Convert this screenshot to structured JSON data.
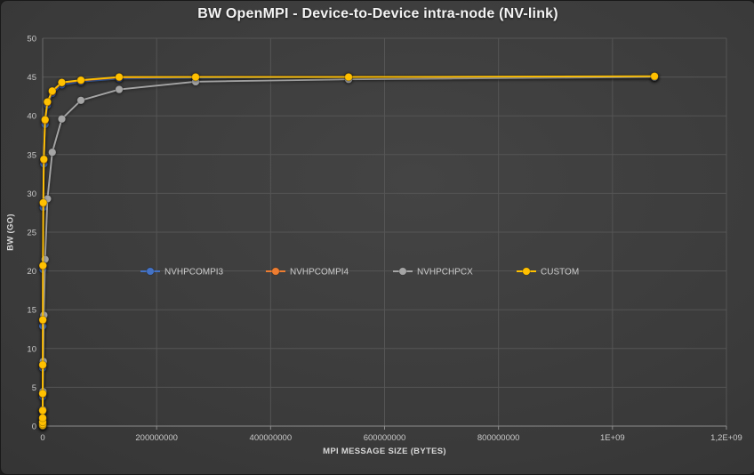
{
  "chart_data": {
    "type": "line",
    "title": "BW OpenMPI - Device-to-Device intra-node (NV-link)",
    "xlabel": "MPI MESSAGE SIZE (BYTES)",
    "ylabel": "BW (GO)",
    "xlim": [
      0,
      1200000000
    ],
    "ylim": [
      0,
      50
    ],
    "grid": true,
    "legend_position": "inside-plot-center-row",
    "x_ticks": [
      {
        "value": 0,
        "label": "0"
      },
      {
        "value": 200000000,
        "label": "200000000"
      },
      {
        "value": 400000000,
        "label": "400000000"
      },
      {
        "value": 600000000,
        "label": "600000000"
      },
      {
        "value": 800000000,
        "label": "800000000"
      },
      {
        "value": 1000000000,
        "label": "1E+09"
      },
      {
        "value": 1200000000,
        "label": "1,2E+09"
      }
    ],
    "y_ticks": [
      {
        "value": 0,
        "label": "0"
      },
      {
        "value": 5,
        "label": "5"
      },
      {
        "value": 10,
        "label": "10"
      },
      {
        "value": 15,
        "label": "15"
      },
      {
        "value": 20,
        "label": "20"
      },
      {
        "value": 25,
        "label": "25"
      },
      {
        "value": 30,
        "label": "30"
      },
      {
        "value": 35,
        "label": "35"
      },
      {
        "value": 40,
        "label": "40"
      },
      {
        "value": 45,
        "label": "45"
      },
      {
        "value": 50,
        "label": "50"
      }
    ],
    "x": [
      1024,
      2048,
      4096,
      8192,
      16384,
      32768,
      65536,
      131072,
      262144,
      524288,
      1048576,
      2097152,
      4194304,
      8388608,
      16777216,
      33554432,
      67108864,
      134217728,
      268435456,
      536870912,
      1073741824
    ],
    "series": [
      {
        "name": "NVHPCOMPI3",
        "color": "#4472C4",
        "values": [
          0.06,
          0.12,
          0.24,
          0.48,
          0.95,
          1.8,
          3.8,
          7.5,
          12.9,
          20.2,
          28.2,
          33.8,
          38.9,
          41.4,
          42.9,
          44.0,
          44.4,
          44.8,
          44.9,
          45.0,
          45.0
        ]
      },
      {
        "name": "NVHPCOMPI4",
        "color": "#ED7D31",
        "values": [
          0.07,
          0.13,
          0.26,
          0.52,
          1.0,
          1.95,
          4.1,
          7.8,
          13.6,
          20.6,
          28.7,
          34.3,
          39.4,
          41.7,
          43.1,
          44.25,
          44.55,
          44.95,
          45.0,
          45.0,
          45.05
        ]
      },
      {
        "name": "NVHPCHPCX",
        "color": "#A5A5A5",
        "values": [
          0.01,
          0.02,
          0.03,
          0.05,
          0.1,
          0.2,
          0.4,
          0.85,
          2.1,
          4.45,
          8.35,
          14.3,
          21.5,
          29.3,
          35.3,
          39.6,
          42.0,
          43.4,
          44.4,
          44.7,
          45.0
        ]
      },
      {
        "name": "CUSTOM",
        "color": "#FFC000",
        "values": [
          0.07,
          0.13,
          0.27,
          0.53,
          1.05,
          2.0,
          4.2,
          7.9,
          13.7,
          20.7,
          28.8,
          34.4,
          39.5,
          41.8,
          43.2,
          44.3,
          44.6,
          45.0,
          45.0,
          45.0,
          45.1
        ]
      }
    ]
  },
  "colors": {
    "background_center": "#444444",
    "background_edge": "#2b2b2b",
    "gridline": "#555555",
    "y_axis_line": "#6a6a6a",
    "x_axis_line": "#8c8c8c",
    "tick_text": "#c9c9c9",
    "title_text": "#f4f4f4",
    "axis_title_text": "#d8d8d8",
    "legend_text": "#cccccc"
  }
}
